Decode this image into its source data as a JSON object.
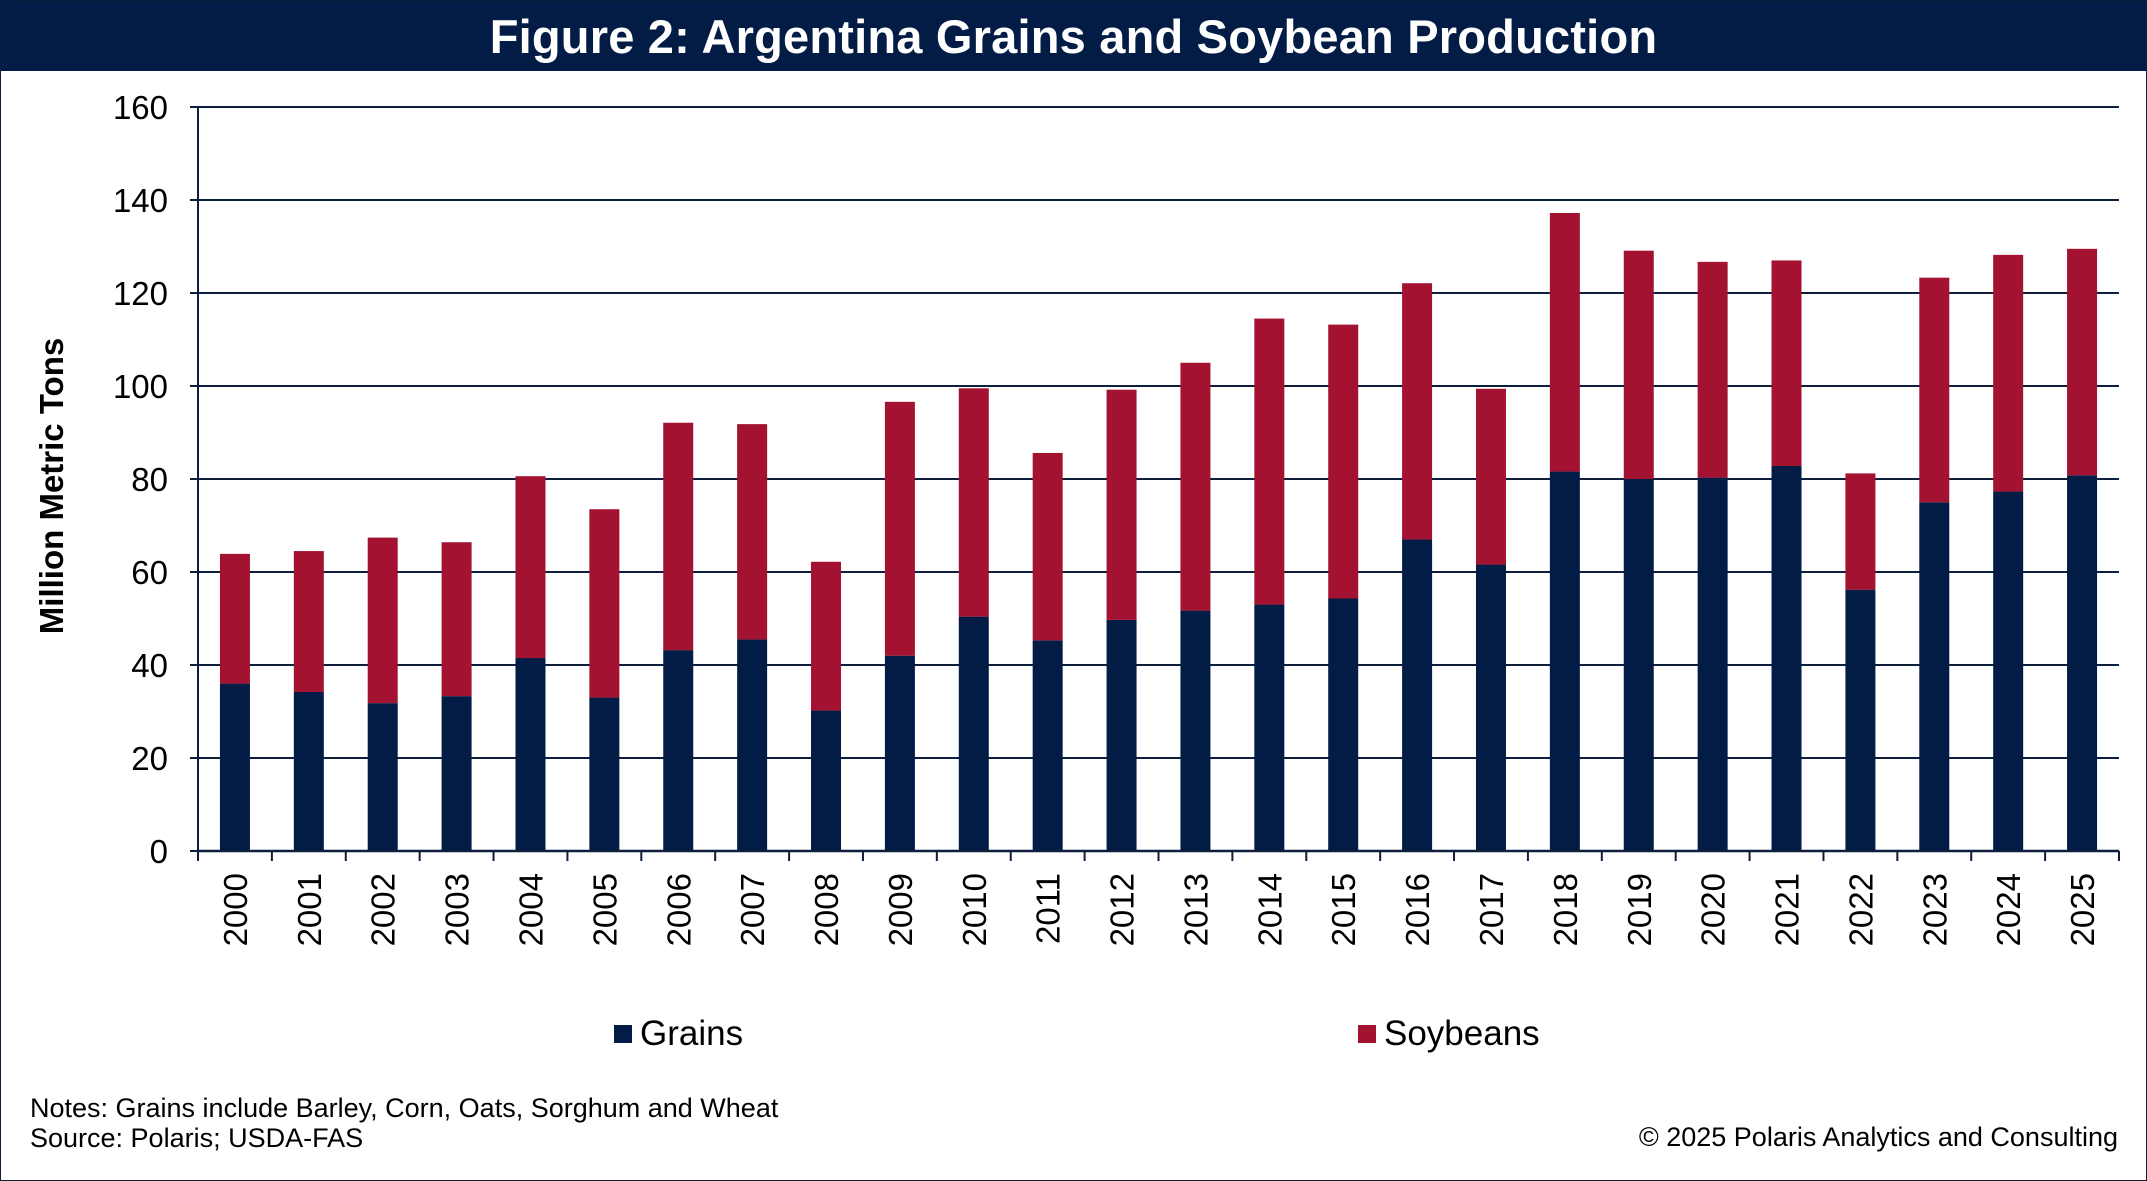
{
  "chart_data": {
    "type": "bar",
    "stacked": true,
    "title": "Figure 2: Argentina Grains and Soybean Production",
    "ylabel": "Million Metric Tons",
    "xlabel": "",
    "ylim": [
      0,
      160
    ],
    "yticks": [
      0,
      20,
      40,
      60,
      80,
      100,
      120,
      140,
      160
    ],
    "grid": true,
    "categories": [
      "2000",
      "2001",
      "2002",
      "2003",
      "2004",
      "2005",
      "2006",
      "2007",
      "2008",
      "2009",
      "2010",
      "2011",
      "2012",
      "2013",
      "2014",
      "2015",
      "2016",
      "2017",
      "2018",
      "2019",
      "2020",
      "2021",
      "2022",
      "2023",
      "2024",
      "2025"
    ],
    "series": [
      {
        "name": "Grains",
        "color": "#021c45",
        "values": [
          36,
          34.2,
          31.8,
          33.3,
          41.5,
          33,
          43.2,
          45.5,
          30.2,
          42,
          50.4,
          45.3,
          49.7,
          51.7,
          53,
          54.3,
          67,
          61.6,
          81.6,
          80,
          80.3,
          82.8,
          56.2,
          75,
          77.3,
          80.8
        ],
        "legend_position": "bottom"
      },
      {
        "name": "Soybeans",
        "color": "#a31230",
        "values": [
          27.9,
          30.3,
          35.6,
          33.1,
          39.1,
          40.5,
          48.9,
          46.3,
          32,
          54.6,
          49.1,
          40.3,
          49.5,
          53.3,
          61.5,
          58.9,
          55.1,
          37.8,
          55.6,
          49.1,
          46.4,
          44.2,
          25,
          48.3,
          50.9,
          48.7
        ]
      }
    ],
    "legend_placement": "bottom"
  },
  "notes": {
    "line1": "Notes: Grains include Barley, Corn, Oats, Sorghum and Wheat",
    "line2": "Source: Polaris; USDA-FAS"
  },
  "copyright": "© 2025 Polaris Analytics and Consulting",
  "colors": {
    "title_bar": "#021c45",
    "axis": "#0d1f3c",
    "grains": "#021c45",
    "soybeans": "#a31230"
  }
}
